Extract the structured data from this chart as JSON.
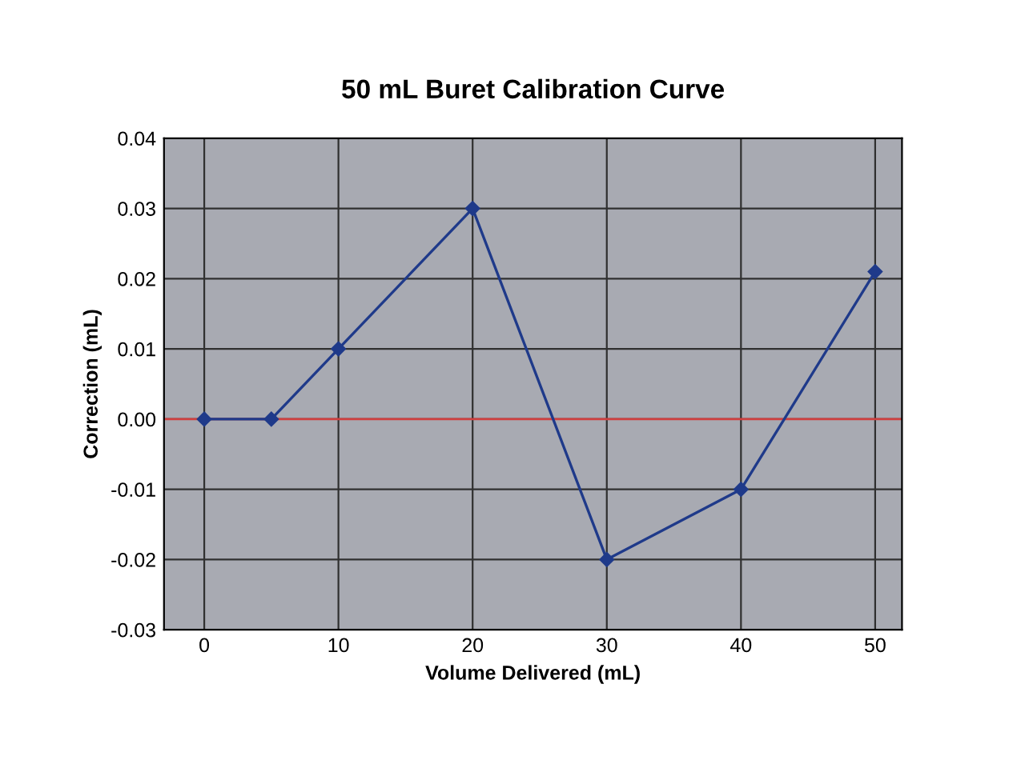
{
  "chart_data": {
    "type": "line",
    "title": "50 mL Buret Calibration Curve",
    "xlabel": "Volume Delivered (mL)",
    "ylabel": "Correction (mL)",
    "x": [
      0,
      5,
      10,
      20,
      30,
      40,
      50
    ],
    "series": [
      {
        "color": "#1f3a8a",
        "values": [
          0,
          0,
          0.01,
          0.03,
          -0.02,
          -0.01,
          0.021
        ]
      }
    ],
    "xlim": [
      -3,
      52
    ],
    "xticks": [
      0,
      10,
      20,
      30,
      40,
      50
    ],
    "ylim": [
      -0.03,
      0.04
    ],
    "yticks": [
      {
        "value": -0.03,
        "label": "-0.03"
      },
      {
        "value": -0.02,
        "label": "-0.02"
      },
      {
        "value": -0.01,
        "label": "-0.01"
      },
      {
        "value": 0,
        "label": "0.00"
      },
      {
        "value": 0.01,
        "label": "0.01"
      },
      {
        "value": 0.02,
        "label": "0.02"
      },
      {
        "value": 0.03,
        "label": "0.03"
      },
      {
        "value": 0.04,
        "label": "0.04"
      }
    ],
    "ref_lines": [
      {
        "axis": "y",
        "value": 0,
        "color": "#d04040"
      }
    ],
    "grid": true,
    "marker": "diamond",
    "line_style": "solid",
    "legend": false
  }
}
